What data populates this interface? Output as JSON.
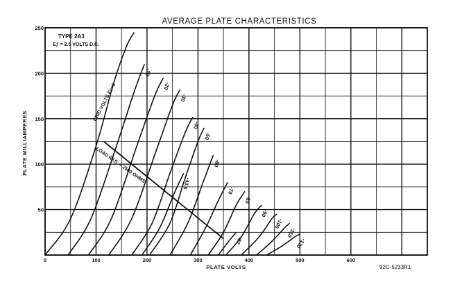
{
  "chart_data": {
    "type": "line",
    "title": "AVERAGE PLATE CHARACTERISTICS",
    "xlabel": "PLATE VOLTS",
    "ylabel": "PLATE MILLIAMPERES",
    "xlim": [
      0,
      750
    ],
    "ylim": [
      0,
      250
    ],
    "xticks": [
      "0",
      "100",
      "200",
      "300",
      "400",
      "500",
      "600"
    ],
    "yticks": [
      "50",
      "100",
      "150",
      "200",
      "250"
    ],
    "annotations": {
      "type": "TYPE 2A3",
      "filament": "Eƒ = 2.5 VOLTS D.C.",
      "grid_volts": "GRID VOLTS Ec=0",
      "load_line": "LOAD RES. = 2500 OHMS",
      "code": "92C-5233R1"
    },
    "series": [
      {
        "name": "0",
        "x": [
          0,
          50,
          100,
          135,
          160,
          175
        ],
        "y": [
          0,
          40,
          120,
          190,
          230,
          245
        ]
      },
      {
        "name": "-10",
        "x": [
          45,
          90,
          140,
          175,
          195
        ],
        "y": [
          0,
          40,
          120,
          180,
          210
        ]
      },
      {
        "name": "-20",
        "x": [
          85,
          130,
          180,
          215,
          232
        ],
        "y": [
          0,
          40,
          120,
          175,
          195
        ]
      },
      {
        "name": "-30",
        "x": [
          125,
          170,
          215,
          250,
          265
        ],
        "y": [
          0,
          40,
          110,
          165,
          182
        ]
      },
      {
        "name": "-40",
        "x": [
          170,
          210,
          245,
          275,
          290
        ],
        "y": [
          0,
          35,
          90,
          135,
          152
        ]
      },
      {
        "name": "-50",
        "x": [
          205,
          245,
          275,
          300,
          312
        ],
        "y": [
          0,
          35,
          85,
          125,
          140
        ]
      },
      {
        "name": "-43.5",
        "x": [
          190,
          225,
          255,
          272
        ],
        "y": [
          0,
          30,
          70,
          90
        ]
      },
      {
        "name": "-60",
        "x": [
          245,
          280,
          310,
          330
        ],
        "y": [
          0,
          35,
          80,
          110
        ]
      },
      {
        "name": "-70",
        "x": [
          285,
          315,
          340,
          358
        ],
        "y": [
          0,
          30,
          60,
          80
        ]
      },
      {
        "name": "-80",
        "x": [
          320,
          350,
          375,
          392
        ],
        "y": [
          0,
          25,
          55,
          70
        ]
      },
      {
        "name": "-87",
        "x": [
          340,
          360,
          375
        ],
        "y": [
          0,
          15,
          25
        ]
      },
      {
        "name": "-90",
        "x": [
          355,
          385,
          410,
          425
        ],
        "y": [
          0,
          20,
          45,
          55
        ]
      },
      {
        "name": "-100",
        "x": [
          385,
          420,
          445,
          455
        ],
        "y": [
          0,
          20,
          40,
          45
        ]
      },
      {
        "name": "-110",
        "x": [
          415,
          445,
          470,
          480
        ],
        "y": [
          0,
          15,
          30,
          35
        ]
      },
      {
        "name": "-120",
        "x": [
          435,
          465,
          490,
          500
        ],
        "y": [
          0,
          10,
          20,
          23
        ]
      }
    ],
    "load_line": {
      "x": [
        115,
        350
      ],
      "y": [
        125,
        18
      ]
    },
    "grid": true
  }
}
